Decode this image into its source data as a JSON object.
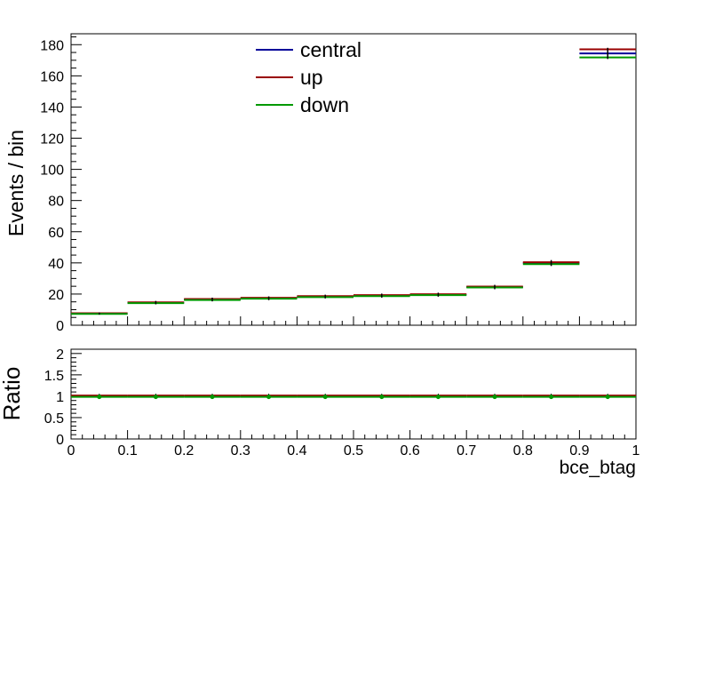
{
  "chart_data": [
    {
      "type": "step-histogram",
      "panel": "main",
      "xlabel": "",
      "ylabel": "Events / bin",
      "xlim": [
        0,
        1
      ],
      "ylim": [
        0,
        187
      ],
      "y_ticks": [
        0,
        20,
        40,
        60,
        80,
        100,
        120,
        140,
        160,
        180
      ],
      "x_ticks": [
        0,
        0.1,
        0.2,
        0.3,
        0.4,
        0.5,
        0.6,
        0.7,
        0.8,
        0.9,
        1
      ],
      "bin_edges": [
        0,
        0.1,
        0.2,
        0.3,
        0.4,
        0.5,
        0.6,
        0.7,
        0.8,
        0.9,
        1.0
      ],
      "legend_placement": "top-center",
      "series": [
        {
          "name": "central",
          "color": "#000099",
          "values": [
            7.5,
            14.5,
            16.5,
            17.3,
            18.4,
            19.0,
            19.6,
            24.5,
            39.9,
            174.4
          ]
        },
        {
          "name": "up",
          "color": "#990000",
          "values": [
            7.7,
            14.7,
            16.8,
            17.6,
            18.7,
            19.3,
            19.9,
            24.8,
            40.4,
            177.0
          ]
        },
        {
          "name": "down",
          "color": "#009900",
          "values": [
            7.3,
            14.2,
            16.2,
            17.0,
            18.0,
            18.7,
            19.3,
            24.2,
            39.2,
            171.8
          ]
        }
      ],
      "errors": [
        0.7,
        1.1,
        1.2,
        1.2,
        1.2,
        1.3,
        1.3,
        1.4,
        1.9,
        3.6
      ]
    },
    {
      "type": "ratio",
      "panel": "ratio",
      "xlabel": "bce_btag",
      "ylabel": "Ratio",
      "xlim": [
        0,
        1
      ],
      "ylim": [
        0,
        2.1
      ],
      "y_ticks": [
        0,
        0.5,
        1,
        1.5,
        2
      ],
      "y_tick_labels": [
        "0",
        "0.5",
        "1",
        "1.5",
        "2"
      ],
      "x_ticks": [
        0,
        0.1,
        0.2,
        0.3,
        0.4,
        0.5,
        0.6,
        0.7,
        0.8,
        0.9,
        1
      ],
      "x_tick_labels": [
        "0",
        "0.1",
        "0.2",
        "0.3",
        "0.4",
        "0.5",
        "0.6",
        "0.7",
        "0.8",
        "0.9",
        "1"
      ],
      "reference_line": 1,
      "points_x": [
        0.05,
        0.15,
        0.25,
        0.35,
        0.45,
        0.55,
        0.65,
        0.75,
        0.85,
        0.95
      ],
      "series": [
        {
          "name": "up",
          "color": "#990000",
          "values": [
            1.015,
            1.015,
            1.015,
            1.015,
            1.015,
            1.015,
            1.015,
            1.015,
            1.015,
            1.015
          ]
        },
        {
          "name": "down",
          "color": "#009900",
          "values": [
            0.985,
            0.985,
            0.985,
            0.985,
            0.985,
            0.985,
            0.985,
            0.985,
            0.985,
            0.985
          ]
        }
      ]
    }
  ]
}
